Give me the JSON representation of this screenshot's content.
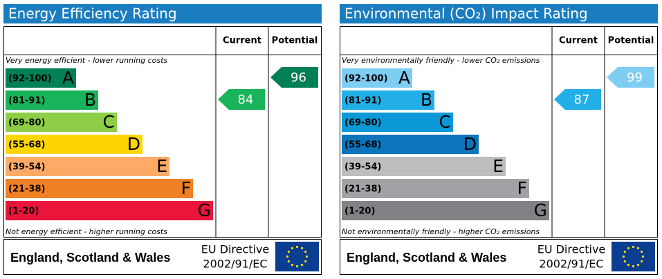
{
  "panels": [
    {
      "title": "Energy Efficiency Rating",
      "headers": {
        "current": "Current",
        "potential": "Potential"
      },
      "top_note": "Very energy efficient - lower running costs",
      "bottom_note": "Not energy efficient - higher running costs",
      "bands": [
        {
          "range": "(92-100)",
          "letter": "A",
          "color": "#008054"
        },
        {
          "range": "(81-91)",
          "letter": "B",
          "color": "#19b459"
        },
        {
          "range": "(69-80)",
          "letter": "C",
          "color": "#8dce46"
        },
        {
          "range": "(55-68)",
          "letter": "D",
          "color": "#ffd500"
        },
        {
          "range": "(39-54)",
          "letter": "E",
          "color": "#fcaa65"
        },
        {
          "range": "(21-38)",
          "letter": "F",
          "color": "#ef8023"
        },
        {
          "range": "(1-20)",
          "letter": "G",
          "color": "#e9153b"
        }
      ],
      "current": 84,
      "potential": 96,
      "footer": {
        "region": "England, Scotland & Wales",
        "directive_line1": "EU Directive",
        "directive_line2": "2002/91/EC"
      }
    },
    {
      "title": "Environmental (CO₂) Impact Rating",
      "headers": {
        "current": "Current",
        "potential": "Potential"
      },
      "top_note": "Very environmentally friendly - lower CO₂ emissions",
      "bottom_note": "Not environmentally friendly - higher CO₂ emissions",
      "bands": [
        {
          "range": "(92-100)",
          "letter": "A",
          "color": "#7ecdf3"
        },
        {
          "range": "(81-91)",
          "letter": "B",
          "color": "#22aee7"
        },
        {
          "range": "(69-80)",
          "letter": "C",
          "color": "#0a99d6"
        },
        {
          "range": "(55-68)",
          "letter": "D",
          "color": "#0c74bb"
        },
        {
          "range": "(39-54)",
          "letter": "E",
          "color": "#bbbdbf"
        },
        {
          "range": "(21-38)",
          "letter": "F",
          "color": "#a0a2a5"
        },
        {
          "range": "(1-20)",
          "letter": "G",
          "color": "#808285"
        }
      ],
      "current": 87,
      "potential": 99,
      "footer": {
        "region": "England, Scotland & Wales",
        "directive_line1": "EU Directive",
        "directive_line2": "2002/91/EC"
      }
    }
  ]
}
